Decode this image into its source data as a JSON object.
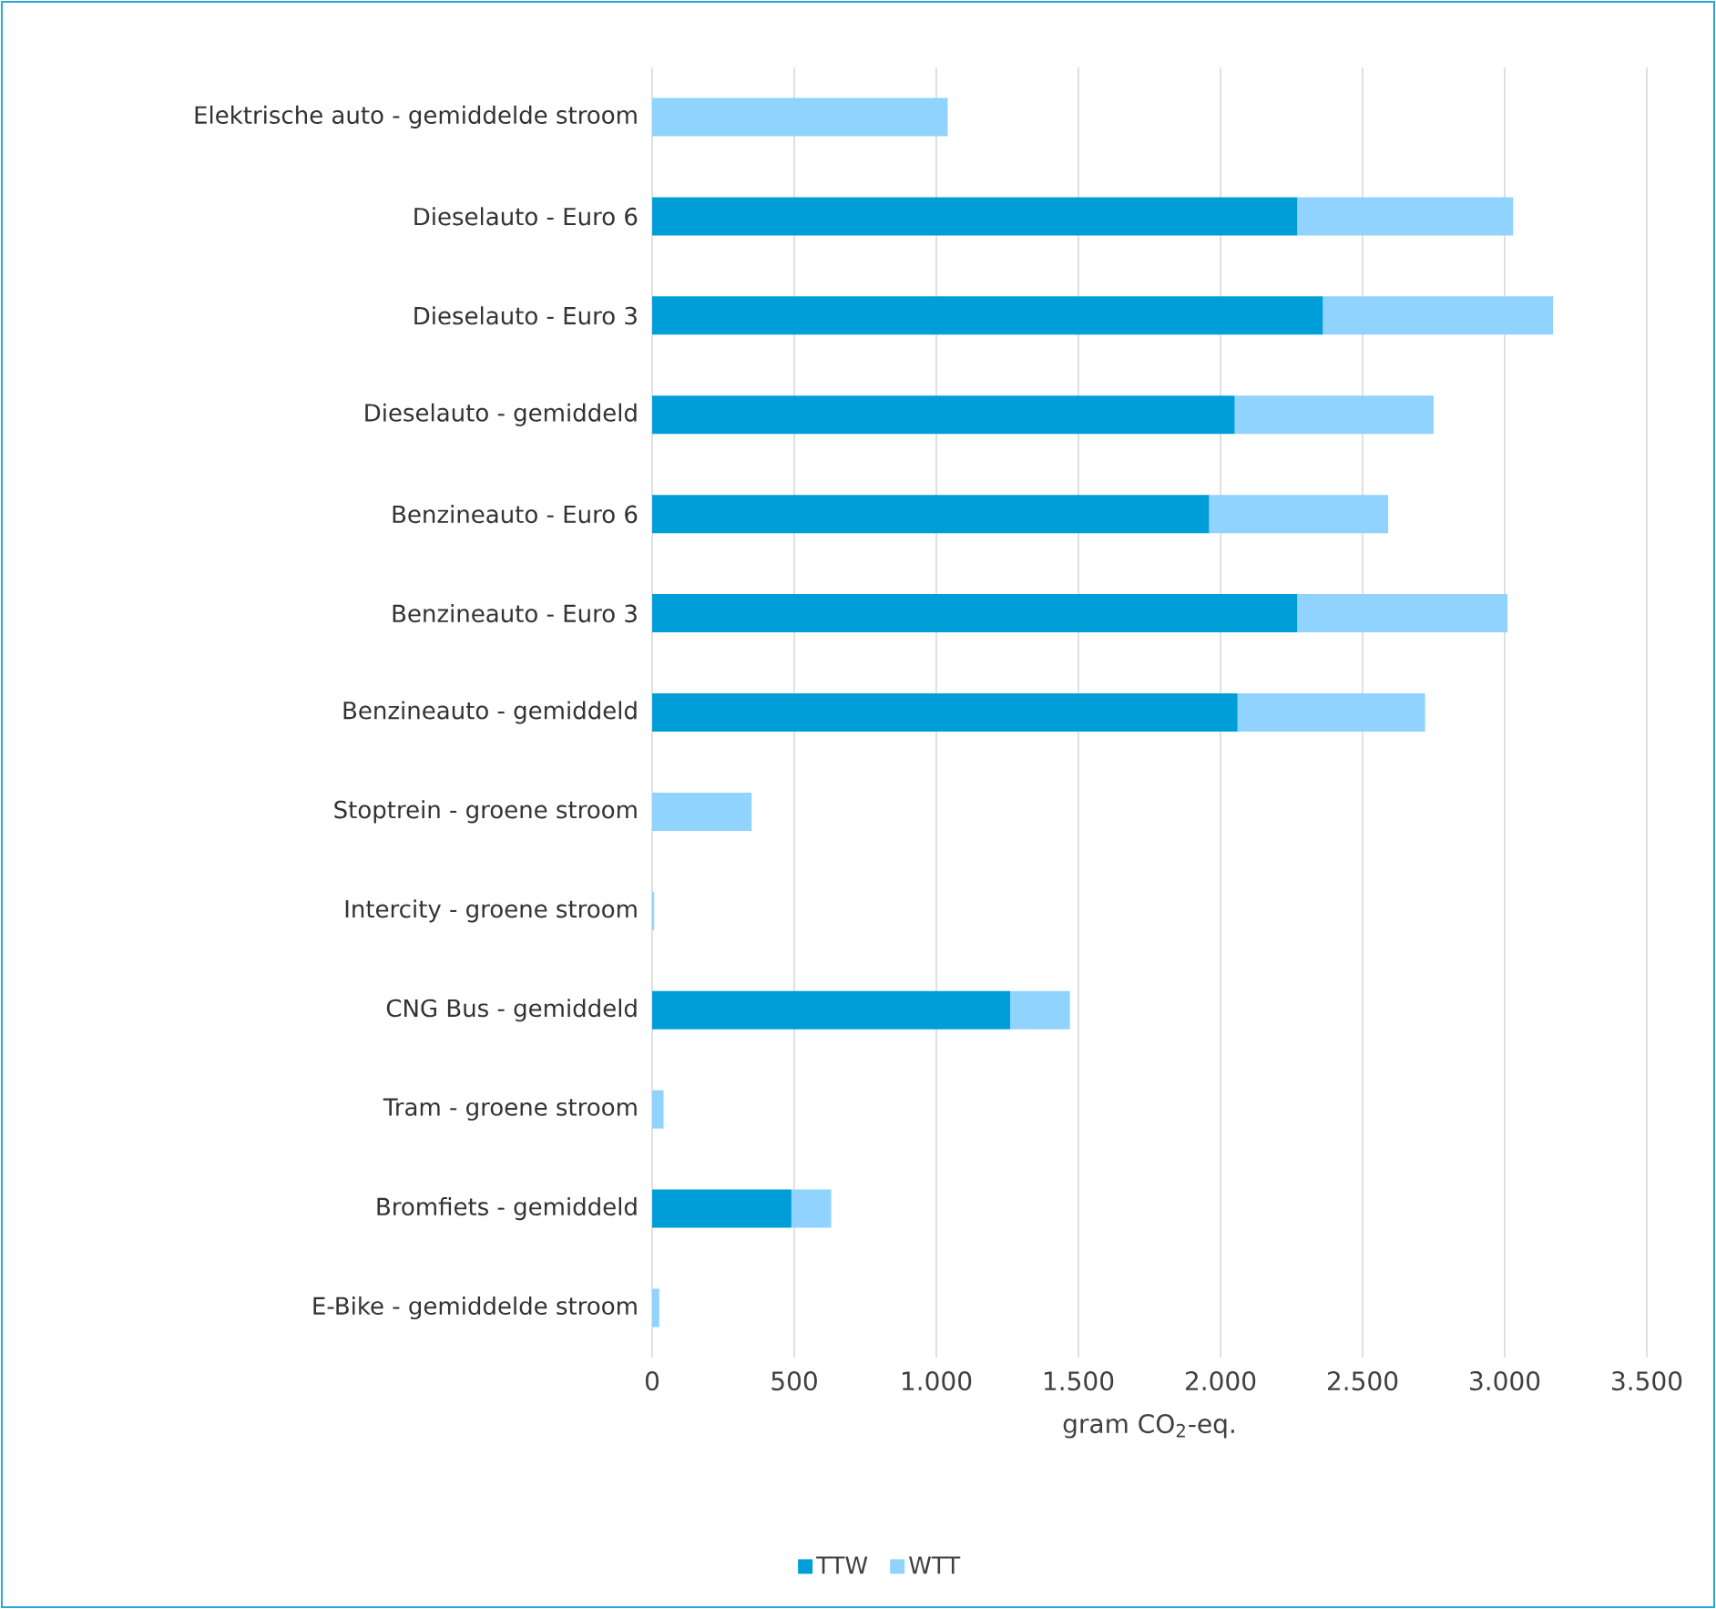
{
  "chart_data": {
    "type": "bar",
    "orientation": "horizontal",
    "stacked": true,
    "categories": [
      "Elektrische auto - gemiddelde stroom",
      "Dieselauto - Euro 6",
      "Dieselauto - Euro 3",
      "Dieselauto - gemiddeld",
      "Benzineauto - Euro 6",
      "Benzineauto - Euro 3",
      "Benzineauto - gemiddeld",
      "Stoptrein - groene stroom",
      "Intercity - groene stroom",
      "CNG Bus - gemiddeld",
      "Tram - groene stroom",
      "Bromfiets - gemiddeld",
      "E-Bike - gemiddelde stroom"
    ],
    "series": [
      {
        "name": "TTW",
        "color": "#009ed8",
        "values": [
          0,
          2270,
          2360,
          2050,
          1960,
          2270,
          2060,
          0,
          0,
          1260,
          0,
          490,
          0
        ]
      },
      {
        "name": "WTT",
        "color": "#8fd3fe",
        "values": [
          1040,
          760,
          810,
          700,
          630,
          740,
          660,
          350,
          7,
          210,
          40,
          140,
          25
        ]
      }
    ],
    "xlim": [
      0,
      3500
    ],
    "xticks": [
      0,
      500,
      {
        "value": 1000,
        "label": "1.000"
      },
      {
        "value": 1500,
        "label": "1.500"
      },
      {
        "value": 2000,
        "label": "2.000"
      },
      {
        "value": 2500,
        "label": "2.500"
      },
      {
        "value": 3000,
        "label": "3.000"
      },
      {
        "value": 3500,
        "label": "3.500"
      }
    ],
    "xlabel": "gram CO$_{2}$-eq.",
    "grid": "x",
    "legend": "bottom"
  }
}
